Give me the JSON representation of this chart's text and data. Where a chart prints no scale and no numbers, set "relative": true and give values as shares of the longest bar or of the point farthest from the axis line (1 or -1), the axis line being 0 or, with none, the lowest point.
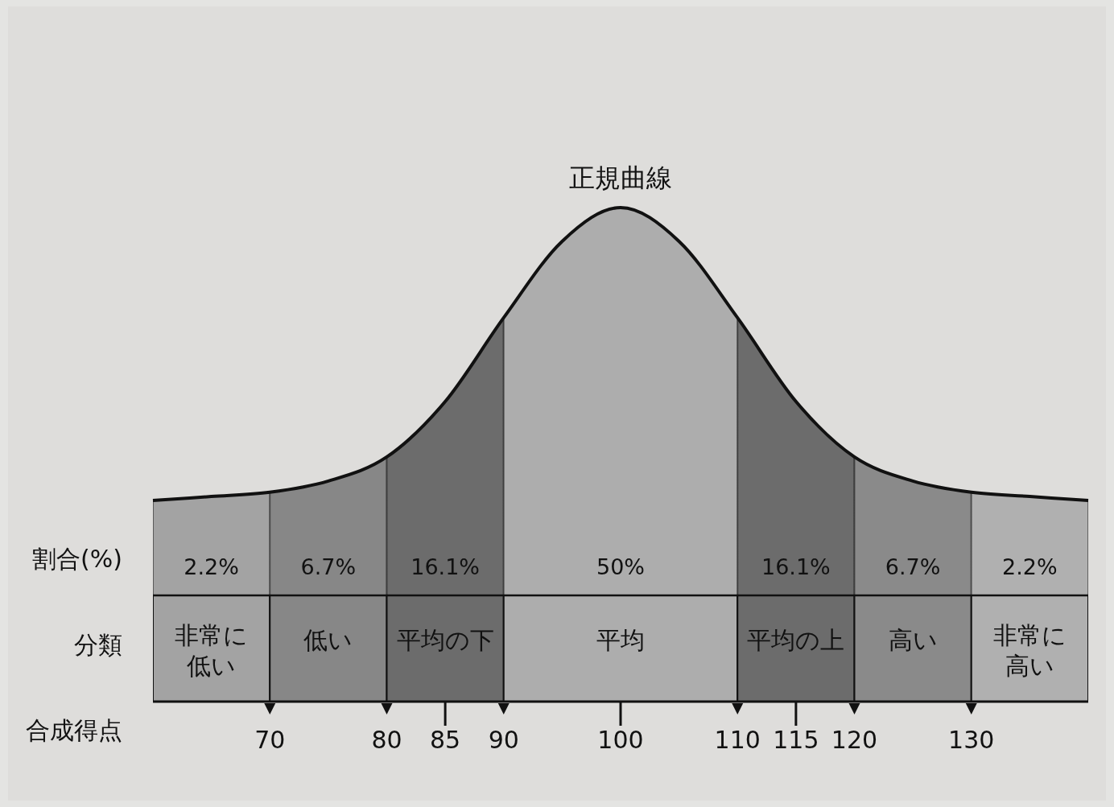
{
  "chart_data": {
    "type": "area",
    "title": "正規曲線",
    "relative": true,
    "series": [
      {
        "color": "#111111",
        "x": [
          60,
          65,
          70,
          75,
          80,
          85,
          90,
          95,
          100,
          105,
          110,
          115,
          120,
          125,
          130,
          135,
          140
        ],
        "values": [
          0.245,
          0.255,
          0.266,
          0.295,
          0.357,
          0.5,
          0.716,
          0.913,
          1,
          0.913,
          0.716,
          0.5,
          0.357,
          0.295,
          0.266,
          0.255,
          0.245
        ]
      }
    ],
    "xlim": [
      60,
      140
    ],
    "xticks": [
      70,
      80,
      85,
      90,
      100,
      110,
      115,
      120,
      130
    ],
    "bands": [
      {
        "axis": "x",
        "from": 60,
        "to": 70,
        "label": "非常に低い",
        "color": "#a3a3a3"
      },
      {
        "axis": "x",
        "from": 70,
        "to": 80,
        "label": "低い",
        "color": "#878787"
      },
      {
        "axis": "x",
        "from": 80,
        "to": 90,
        "label": "平均の下",
        "color": "#6c6c6c"
      },
      {
        "axis": "x",
        "from": 90,
        "to": 110,
        "label": "平均",
        "color": "#adadad"
      },
      {
        "axis": "x",
        "from": 110,
        "to": 120,
        "label": "平均の上",
        "color": "#6c6c6c"
      },
      {
        "axis": "x",
        "from": 120,
        "to": 130,
        "label": "高い",
        "color": "#8a8a8a"
      },
      {
        "axis": "x",
        "from": 130,
        "to": 140,
        "label": "非常に高い",
        "color": "#b0b0b0"
      }
    ],
    "annotations": [
      "割合(%)",
      "分類",
      "合成得点",
      "2.2%",
      "6.7%",
      "16.1%",
      "50%",
      "16.1%",
      "6.7%",
      "2.2%"
    ]
  }
}
